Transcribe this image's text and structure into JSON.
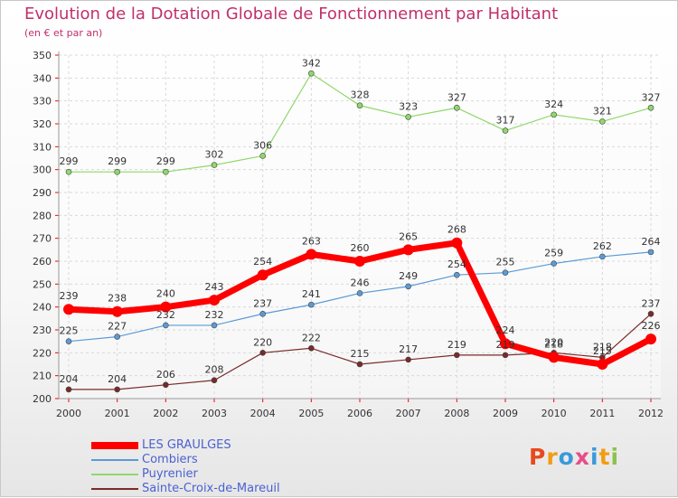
{
  "header": {
    "title": "Evolution de la Dotation Globale de Fonctionnement par Habitant",
    "subtitle": "(en € et par an)"
  },
  "brand": {
    "letters": [
      "P",
      "r",
      "o",
      "x",
      "i",
      "t",
      "i"
    ]
  },
  "colors": {
    "title": "#c0306a",
    "legend_text": "#4b61d1",
    "brand_letters": [
      "#e8491d",
      "#f39c12",
      "#3a9ad9",
      "#e84c88",
      "#3a9ad9",
      "#f39c12",
      "#8bc34a"
    ]
  },
  "chart_data": {
    "type": "line",
    "title": "Evolution de la Dotation Globale de Fonctionnement par Habitant",
    "subtitle": "(en € et par an)",
    "x": [
      2000,
      2001,
      2002,
      2003,
      2004,
      2005,
      2006,
      2007,
      2008,
      2009,
      2010,
      2011,
      2012
    ],
    "ylim": [
      200,
      350
    ],
    "yticks": [
      200,
      210,
      220,
      230,
      240,
      250,
      260,
      270,
      280,
      290,
      300,
      310,
      320,
      330,
      340,
      350
    ],
    "grid": true,
    "legend_position": "bottom-left",
    "series": [
      {
        "name": "LES GRAULGES",
        "color": "#ff0000",
        "emphasis": true,
        "values": [
          239,
          238,
          240,
          243,
          254,
          263,
          260,
          265,
          268,
          224,
          218,
          215,
          226
        ]
      },
      {
        "name": "Combiers",
        "color": "#5a9bd5",
        "emphasis": false,
        "values": [
          225,
          227,
          232,
          232,
          237,
          241,
          246,
          249,
          254,
          255,
          259,
          262,
          264
        ]
      },
      {
        "name": "Puyrenier",
        "color": "#8fd86a",
        "emphasis": false,
        "values": [
          299,
          299,
          299,
          302,
          306,
          342,
          328,
          323,
          327,
          317,
          324,
          321,
          327
        ]
      },
      {
        "name": "Sainte-Croix-de-Mareuil",
        "color": "#7a2a2a",
        "emphasis": false,
        "values": [
          204,
          204,
          206,
          208,
          220,
          222,
          215,
          217,
          219,
          219,
          220,
          218,
          237
        ]
      }
    ]
  }
}
